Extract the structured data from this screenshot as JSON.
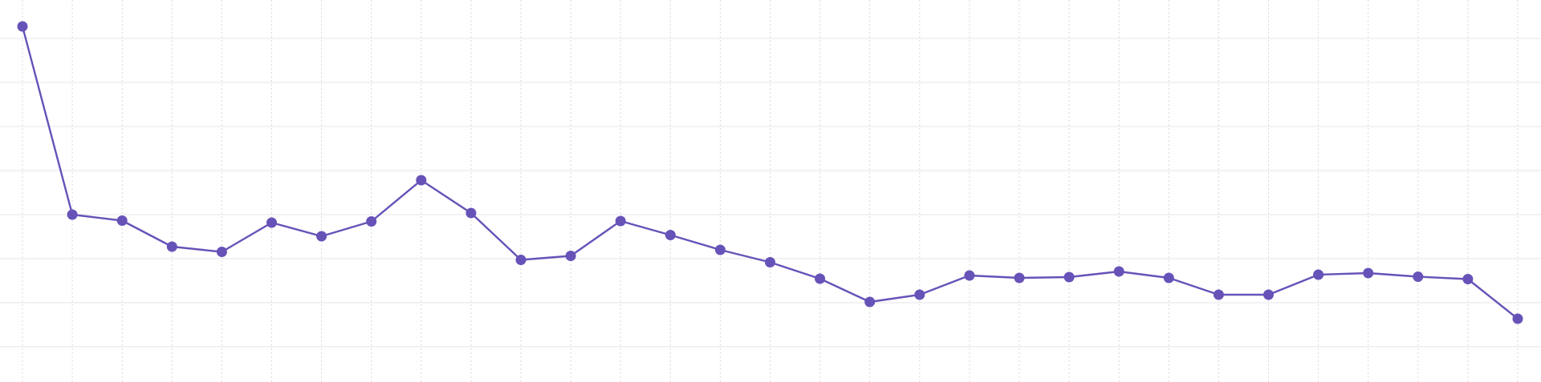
{
  "chart_data": {
    "type": "line",
    "title": "",
    "xlabel": "",
    "ylabel": "",
    "grid": {
      "horizontal": true,
      "vertical": true
    },
    "legend": "none",
    "x": [
      1,
      2,
      3,
      4,
      5,
      6,
      7,
      8,
      9,
      10,
      11,
      12,
      13,
      14,
      15,
      16,
      17,
      18,
      19,
      20,
      21,
      22,
      23,
      24,
      25,
      26,
      27,
      28,
      29,
      30,
      31
    ],
    "ylim": [
      0,
      8.4
    ],
    "series": [
      {
        "color": "#6752b8",
        "values": [
          8.0,
          3.3,
          3.15,
          2.5,
          2.37,
          3.1,
          2.76,
          3.13,
          4.16,
          3.34,
          2.17,
          2.27,
          3.14,
          2.79,
          2.42,
          2.11,
          1.7,
          1.12,
          1.3,
          1.78,
          1.72,
          1.74,
          1.88,
          1.72,
          1.3,
          1.3,
          1.8,
          1.84,
          1.75,
          1.69,
          0.7
        ]
      }
    ]
  }
}
